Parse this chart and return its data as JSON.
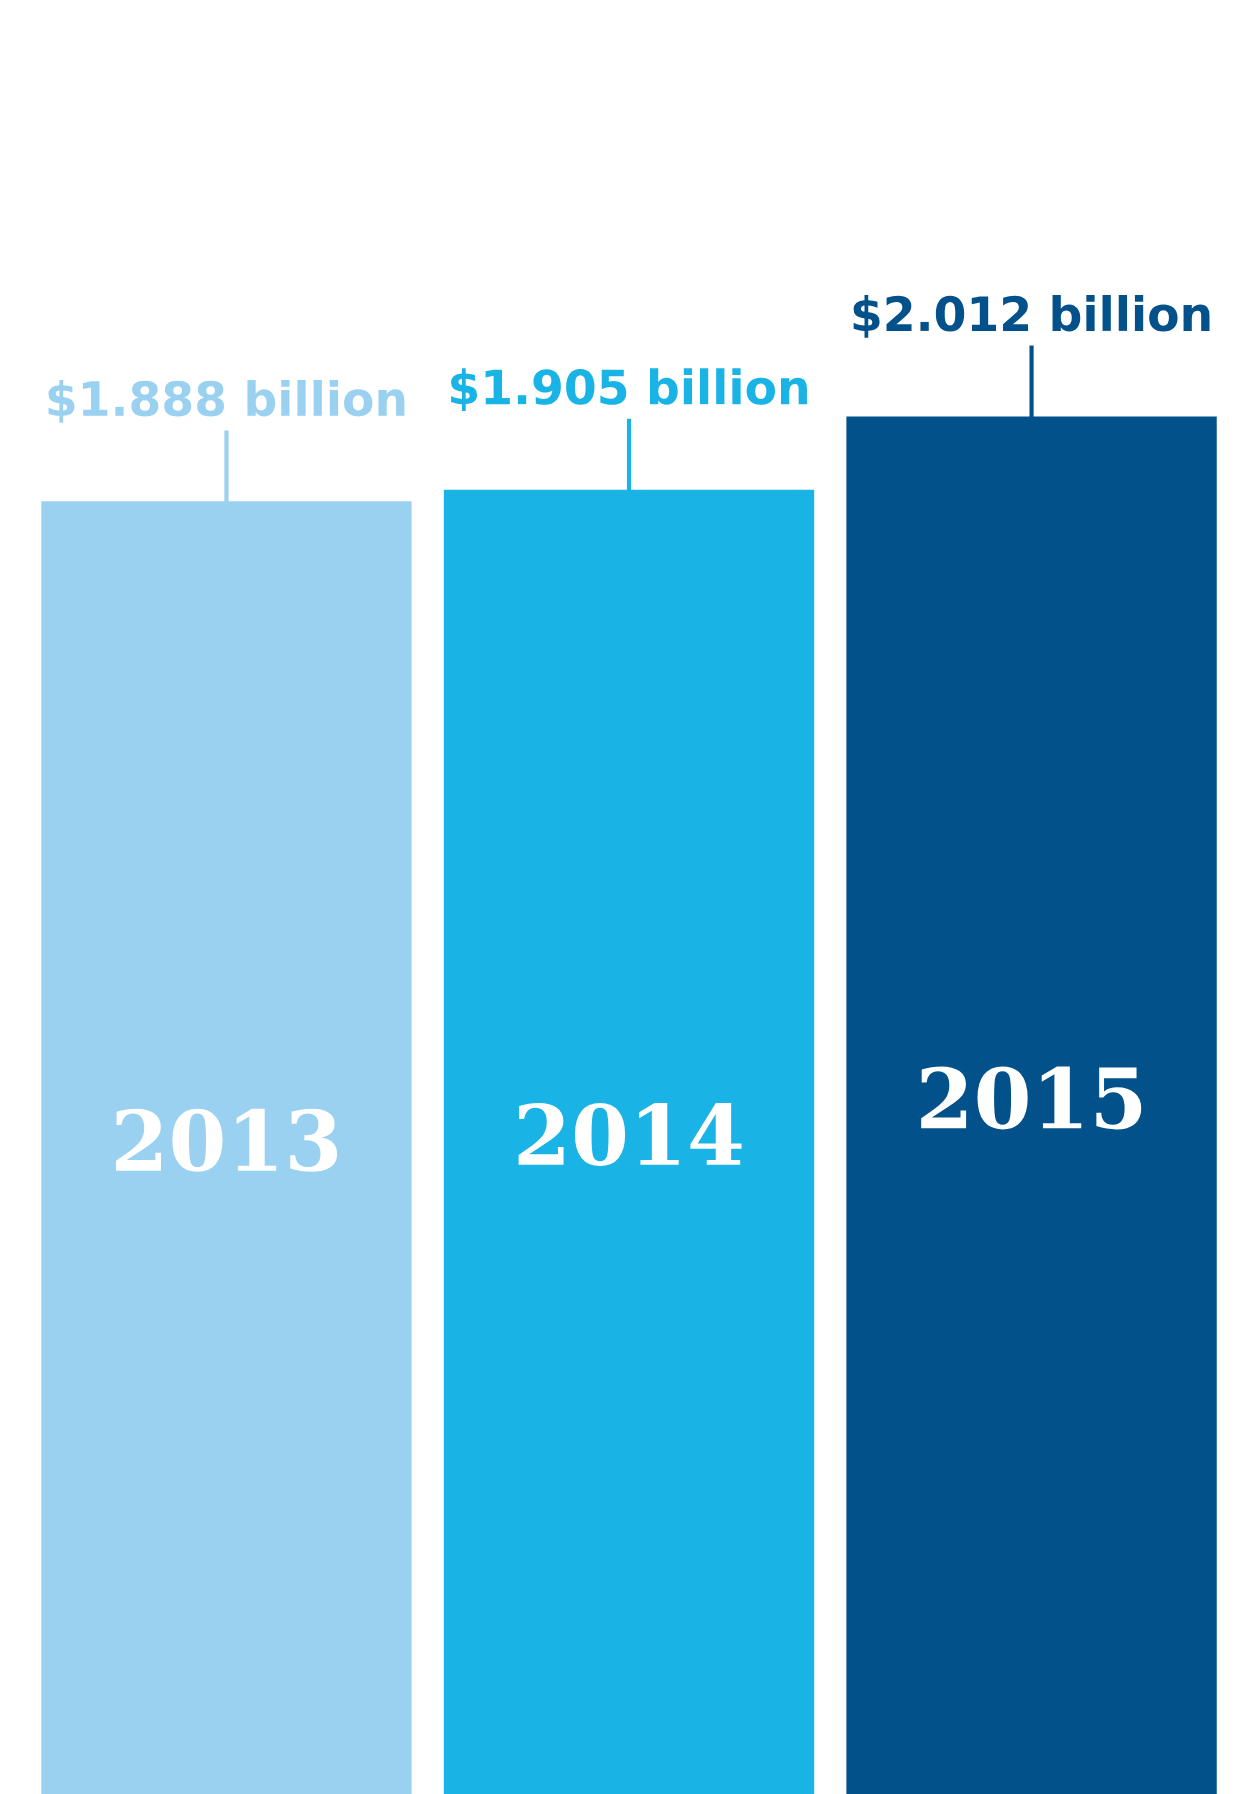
{
  "chart_data": {
    "type": "bar",
    "categories": [
      "2013",
      "2014",
      "2015"
    ],
    "values": [
      1.888,
      1.905,
      2.012
    ],
    "colors": [
      "#9bd1f0",
      "#1ab3e6",
      "#02518a"
    ],
    "value_labels": [
      "$1.888 billion",
      "$1.905 billion",
      "$2.012 billion"
    ]
  }
}
